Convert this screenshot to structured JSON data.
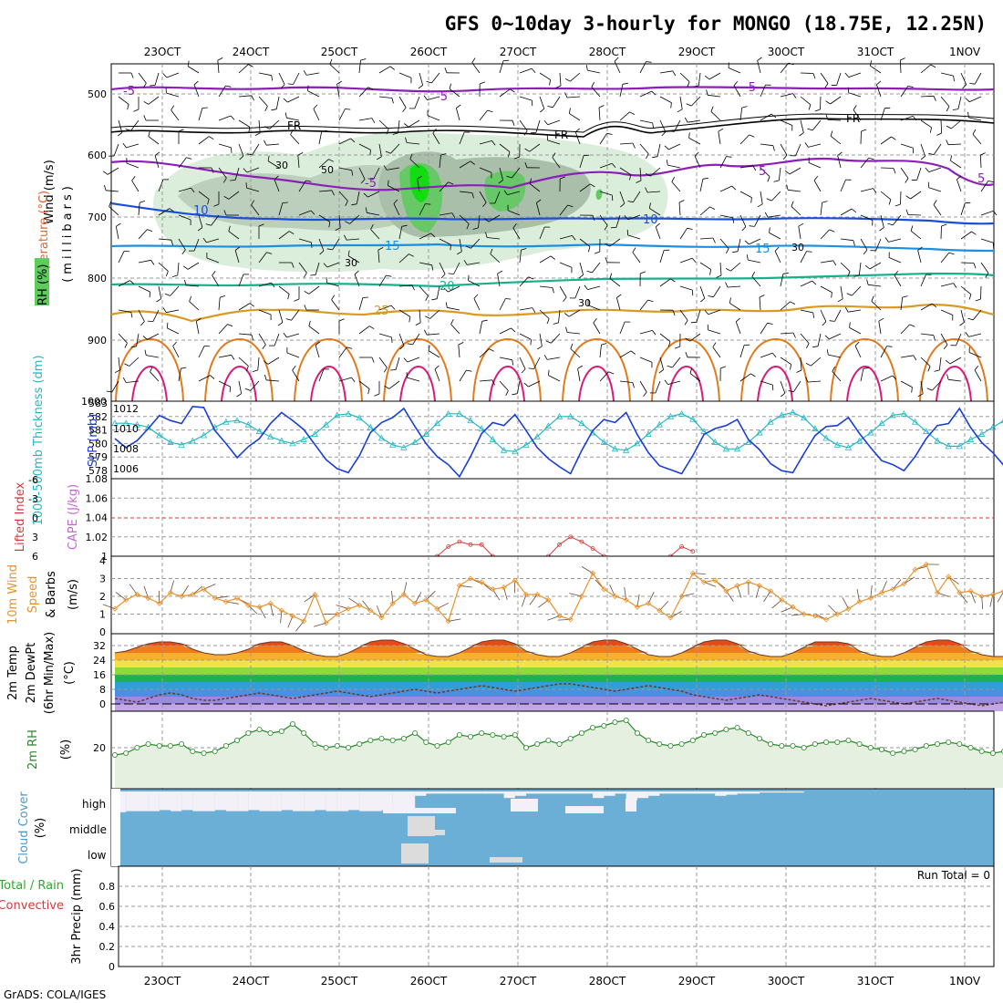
{
  "title": "GFS 0~10day 3-hourly for MONGO (18.75E, 12.25N)",
  "footer": "GrADS: COLA/IGES",
  "date_labels": [
    "23OCT",
    "24OCT",
    "25OCT",
    "26OCT",
    "27OCT",
    "28OCT",
    "29OCT",
    "30OCT",
    "31OCT",
    "1NOV"
  ],
  "colors": {
    "grid": "#9a9a9a",
    "temp_cold": "#8b1fb8",
    "temp_mid": "#1a4fd6",
    "temp_15": "#1e8fe0",
    "temp_20": "#17b08a",
    "temp_25": "#d99a22",
    "temp_30": "#e07a1a",
    "temp_35": "#d81b7a",
    "rh_fill": "#dbeedb",
    "rh_fill2": "#b7d4b7",
    "rh_fill3": "#5ccc5c",
    "slp": "#1a3fd6",
    "thickness": "#25b8c6",
    "cape": "#d53a3a",
    "wind10": "#e8922c",
    "dewpt": "#7a4b2a",
    "rh2m": "#2b8a2b",
    "cloud_blue": "#6baed6",
    "cloud_white": "#f3f0f7",
    "cloud_gray": "#dcdcdc"
  },
  "panels": {
    "upper": {
      "ylabel_parts": [
        "Wind",
        " (m/s)",
        "Temperature",
        " (°C)",
        "RH",
        " (%)"
      ],
      "yaxis_title": "(millibars)",
      "pressure_ticks": [
        "500",
        "600",
        "700",
        "800",
        "900",
        "1000"
      ],
      "contour_labels": {
        "minus5_a": "-5",
        "minus5_b": "-5",
        "minus5_c": "-5",
        "minus5_d": "-5",
        "minus5_e": "5",
        "minus5_f": "5",
        "fr_a": "FR",
        "fr_b": "FR",
        "fr_c": "FR",
        "t10_a": "10",
        "t10_b": "10",
        "t15_a": "15",
        "t15_b": "15",
        "t20": "20",
        "t25": "25",
        "rh30_a": "30",
        "rh30_b": "30",
        "rh30_c": "30",
        "rh30_d": "30",
        "rh50": "50"
      }
    },
    "slp": {
      "ylabel_left": "1000-500mb Thickness (dm)",
      "ylabel_right": "SLP (mb)",
      "left_ticks": [
        "583",
        "582",
        "581",
        "580",
        "579",
        "578"
      ],
      "right_ticks": [
        "1012",
        "1010",
        "1008",
        "1006"
      ]
    },
    "cape": {
      "ylabel_left": "Lifted Index",
      "ylabel_right": "CAPE (J/kg)",
      "left_ticks": [
        "-6",
        "-3",
        "0",
        "3",
        "6"
      ],
      "right_ticks": [
        "1.08",
        "1.06",
        "1.04",
        "1.02",
        "1"
      ]
    },
    "wind10": {
      "ylabel": "10m Wind Speed & Barbs (m/s)",
      "ylabel_parts": [
        "10m Wind",
        "Speed",
        "& Barbs",
        "(m/s)"
      ],
      "ticks": [
        "4",
        "3",
        "2",
        "1",
        "0"
      ]
    },
    "temp2m": {
      "ylabel_parts": [
        "2m Temp",
        "2m DewPt",
        "(6hr Min/Max)",
        "(°C)"
      ],
      "ticks": [
        "32",
        "24",
        "16",
        "8",
        "0"
      ]
    },
    "rh2m": {
      "ylabel_parts": [
        "2m RH",
        "(%)"
      ],
      "ticks": [
        "20"
      ]
    },
    "cloud": {
      "ylabel_parts": [
        "Cloud Cover",
        "(%)"
      ],
      "levels": [
        "high",
        "middle",
        "low"
      ]
    },
    "precip": {
      "ylabel_parts": [
        "Total / Rain",
        "Convective",
        "3hr Precip (mm)"
      ],
      "run_total": "Run Total = 0",
      "ticks": [
        "0.8",
        "0.6",
        "0.4",
        "0.2",
        "0"
      ]
    }
  },
  "chart_data": [
    {
      "type": "line",
      "title": "GFS 0~10day 3-hourly for MONGO (18.75E, 12.25N)",
      "panel": "1000-500mb Thickness / SLP",
      "x_start": "22OCT 15Z",
      "x_step_hours": 3,
      "series": [
        {
          "name": "SLP (mb)",
          "values": [
            1009.0,
            1008.1,
            1008.8,
            1010.0,
            1011.3,
            1010.8,
            1010.5,
            1012.2,
            1012.1,
            1009.8,
            1008.5,
            1007.1,
            1008.2,
            1009.0,
            1010.5,
            1011.6,
            1010.8,
            1009.9,
            1008.4,
            1006.9,
            1006.0,
            1005.6,
            1007.3,
            1009.6,
            1010.6,
            1011.1,
            1012.0,
            1010.2,
            1008.5,
            1007.2,
            1006.4,
            1005.2,
            1007.2,
            1009.5,
            1010.6,
            1010.3,
            1011.4,
            1009.8,
            1008.1,
            1007.0,
            1006.2,
            1005.5,
            1007.8,
            1009.8,
            1010.9,
            1010.6,
            1011.6,
            1009.4,
            1007.6,
            1006.3,
            1005.9,
            1005.5,
            1007.3,
            1009.4,
            1010.0,
            1010.3,
            1010.9,
            1008.9,
            1007.9,
            1006.5,
            1005.8,
            1005.6,
            1007.5,
            1009.3,
            1010.2,
            1010.3,
            1011.1,
            1009.5,
            1008.1,
            1006.8,
            1006.4,
            1005.8,
            1007.2,
            1009.0,
            1010.3,
            1010.5,
            1012.0,
            1010.1,
            1008.6,
            1007.6,
            1006.3,
            1006.0,
            1007.4,
            1008.8,
            1009.8,
            1010.4,
            1011.4
          ]
        },
        {
          "name": "1000-500mb Thickness (dm)",
          "values": [
            581.5,
            581.5,
            581.4,
            581.2,
            580.6,
            580.1,
            579.9,
            580.2,
            580.6,
            581.2,
            581.6,
            581.7,
            581.4,
            580.9,
            580.5,
            580.2,
            580.0,
            580.3,
            580.7,
            581.4,
            582.1,
            582.2,
            581.9,
            581.2,
            580.4,
            579.9,
            579.7,
            580.1,
            580.7,
            581.5,
            582.2,
            582.2,
            581.7,
            581.1,
            580.3,
            579.5,
            579.4,
            579.9,
            580.5,
            581.3,
            582.0,
            582.0,
            581.5,
            580.8,
            580.1,
            579.6,
            579.5,
            580.0,
            580.7,
            581.4,
            582.0,
            582.2,
            581.8,
            580.9,
            580.1,
            579.6,
            579.6,
            580.1,
            580.8,
            581.6,
            582.1,
            582.3,
            581.9,
            581.1,
            580.4,
            579.9,
            579.7,
            580.2,
            580.8,
            581.5,
            582.1,
            582.2,
            581.6,
            580.9,
            580.2,
            579.8,
            579.8,
            580.3,
            580.7,
            581.2,
            581.7,
            581.8,
            581.3,
            580.6,
            579.7,
            578.7,
            578.0,
            578.4
          ]
        }
      ],
      "ylim_left": [
        578,
        583
      ],
      "ylim_right": [
        1005,
        1012
      ]
    },
    {
      "type": "line",
      "panel": "Lifted Index / CAPE",
      "series": [
        {
          "name": "CAPE (J/kg)",
          "segments": [
            {
              "start_index": 29,
              "values": [
                1.0,
                1.01,
                1.015,
                1.012,
                1.012,
                1.0
              ]
            },
            {
              "start_index": 39,
              "values": [
                1.0,
                1.012,
                1.02,
                1.015,
                1.008,
                1.0
              ]
            },
            {
              "start_index": 50,
              "values": [
                1.0,
                1.01,
                1.005
              ]
            }
          ]
        }
      ],
      "ylim_right": [
        1.0,
        1.08
      ],
      "reference_line": {
        "left_value": 0
      }
    },
    {
      "type": "line",
      "panel": "10m Wind Speed & Barbs",
      "series": [
        {
          "name": "10m Wind Speed (m/s)",
          "values": [
            1.3,
            1.8,
            2.1,
            1.9,
            1.6,
            2.2,
            2.0,
            2.1,
            2.4,
            1.9,
            1.7,
            1.9,
            1.5,
            1.4,
            1.6,
            1.2,
            0.9,
            0.6,
            2.1,
            0.5,
            1.0,
            1.3,
            1.5,
            1.2,
            0.8,
            1.6,
            2.1,
            1.6,
            1.8,
            1.3,
            0.6,
            2.6,
            3.0,
            2.8,
            2.4,
            2.5,
            2.9,
            2.1,
            2.1,
            1.8,
            0.9,
            0.7,
            2.0,
            3.3,
            2.4,
            2.0,
            1.8,
            1.4,
            1.6,
            1.2,
            0.8,
            2.0,
            3.3,
            2.8,
            2.9,
            2.3,
            2.6,
            2.8,
            2.6,
            2.3,
            1.8,
            1.4,
            1.0,
            0.9,
            0.7,
            1.0,
            1.3,
            1.7,
            1.9,
            2.2,
            2.4,
            2.7,
            3.5,
            3.8,
            2.2,
            3.1,
            2.2,
            2.3,
            2.0,
            2.1,
            2.3,
            2.0,
            1.7,
            1.5,
            1.3,
            1.0,
            1.4,
            2.4
          ]
        }
      ],
      "ylim": [
        0,
        4
      ]
    },
    {
      "type": "area",
      "panel": "2m Temp / 2m DewPt",
      "series": [
        {
          "name": "2m Temp (°C)",
          "values": [
            28,
            29,
            31,
            33,
            34,
            34,
            33,
            30,
            28,
            27,
            27,
            28,
            30,
            33,
            34,
            34,
            32,
            29,
            27,
            26,
            26,
            28,
            31,
            34,
            35,
            35,
            33,
            30,
            27,
            26,
            26,
            28,
            31,
            34,
            35,
            35,
            33,
            29,
            27,
            26,
            26,
            28,
            31,
            34,
            35,
            35,
            33,
            30,
            27,
            26,
            26,
            28,
            31,
            34,
            35,
            35,
            33,
            29,
            27,
            26,
            26,
            28,
            31,
            34,
            34,
            34,
            33,
            29,
            27,
            26,
            26,
            28,
            31,
            34,
            35,
            35,
            33,
            29,
            27,
            26,
            26,
            28,
            31,
            34,
            35,
            35,
            33,
            29,
            27,
            26,
            25,
            24
          ]
        },
        {
          "name": "2m DewPt (°C)",
          "values": [
            3,
            2,
            1,
            3,
            5,
            6,
            5,
            3,
            2,
            2,
            3,
            4,
            5,
            6,
            5,
            4,
            3,
            4,
            5,
            6,
            7,
            6,
            5,
            4,
            5,
            6,
            7,
            8,
            7,
            6,
            7,
            8,
            9,
            10,
            9,
            8,
            7,
            8,
            9,
            10,
            11,
            11,
            10,
            9,
            8,
            7,
            8,
            9,
            10,
            9,
            8,
            7,
            5,
            4,
            3,
            2,
            3,
            4,
            5,
            4,
            3,
            2,
            1,
            0,
            -1,
            0,
            1,
            2,
            3,
            2,
            1,
            0,
            1,
            2,
            3,
            2,
            1,
            0,
            -1,
            0,
            1,
            2,
            1,
            0,
            -1,
            -2,
            -1
          ]
        }
      ],
      "ylim": [
        -4,
        36
      ]
    },
    {
      "type": "area",
      "panel": "2m RH",
      "series": [
        {
          "name": "2m RH (%)",
          "values": [
            16,
            17,
            20,
            22,
            21,
            21,
            22,
            18,
            17,
            18,
            21,
            24,
            28,
            30,
            28,
            29,
            33,
            28,
            22,
            20,
            21,
            20,
            22,
            24,
            25,
            24,
            25,
            28,
            23,
            21,
            23,
            27,
            26,
            28,
            27,
            26,
            27,
            20,
            22,
            24,
            22,
            25,
            28,
            31,
            32,
            34,
            35,
            28,
            24,
            22,
            21,
            22,
            24,
            27,
            28,
            30,
            31,
            28,
            25,
            22,
            21,
            21,
            20,
            22,
            23,
            23,
            24,
            22,
            20,
            19,
            17,
            18,
            19,
            21,
            22,
            23,
            22,
            20,
            18,
            17,
            18,
            20,
            22,
            23,
            21,
            20,
            20,
            21
          ]
        }
      ],
      "ylim": [
        0,
        40
      ]
    },
    {
      "type": "heatmap",
      "panel": "Cloud Cover",
      "rows": [
        "high",
        "middle",
        "low"
      ],
      "values": "mostly near 0 except high-cloud fraction up to ~95% early, mid/low cloud ~40% around 26OCT"
    },
    {
      "type": "bar",
      "panel": "3hr Precip",
      "values": [],
      "ylim": [
        0,
        1
      ],
      "run_total": 0
    }
  ]
}
